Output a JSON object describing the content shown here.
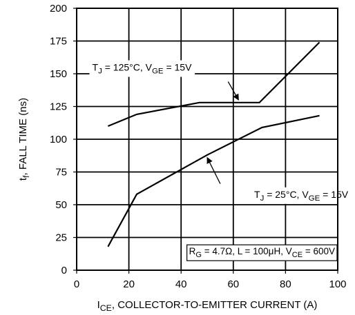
{
  "chart_data": {
    "type": "line",
    "xlabel": {
      "main": "I",
      "sub": "CE",
      "rest": ", COLLECTOR-TO-EMITTER CURRENT (A)"
    },
    "ylabel": {
      "main": "t",
      "sub": "f",
      "rest": ", FALL TIME (ns)"
    },
    "xlim": [
      0,
      100
    ],
    "ylim": [
      0,
      200
    ],
    "xticks": [
      0,
      20,
      40,
      60,
      80,
      100
    ],
    "yticks": [
      0,
      25,
      50,
      75,
      100,
      125,
      150,
      175,
      200
    ],
    "xtick_labels": [
      "0",
      "20",
      "40",
      "60",
      "80",
      "100"
    ],
    "ytick_labels": [
      "0",
      "25",
      "50",
      "75",
      "100",
      "125",
      "150",
      "175",
      "200"
    ],
    "grid": true,
    "series": [
      {
        "x": [
          12,
          23,
          47,
          70,
          93
        ],
        "y": [
          110,
          119,
          128,
          128,
          174
        ]
      },
      {
        "x": [
          12,
          23,
          50,
          71,
          93
        ],
        "y": [
          18,
          58,
          88,
          109,
          118
        ]
      }
    ],
    "annotations": [
      {
        "parts": [
          "T",
          "J",
          " = 125°C, V",
          "GE",
          " = 15V"
        ],
        "label_at": [
          25,
          155
        ],
        "arrow_from": [
          58,
          144
        ],
        "arrow_to": [
          62,
          130
        ]
      },
      {
        "parts": [
          "T",
          "J",
          " = 25°C, V",
          "GE",
          " = 15V"
        ],
        "label_at": [
          86,
          58
        ],
        "arrow_from": [
          55,
          66
        ],
        "arrow_to": [
          50,
          86
        ]
      }
    ],
    "conditions": {
      "parts": [
        "R",
        "G",
        " = 4.7Ω, L = 100μH, V",
        "CE",
        " = 600V"
      ]
    }
  }
}
